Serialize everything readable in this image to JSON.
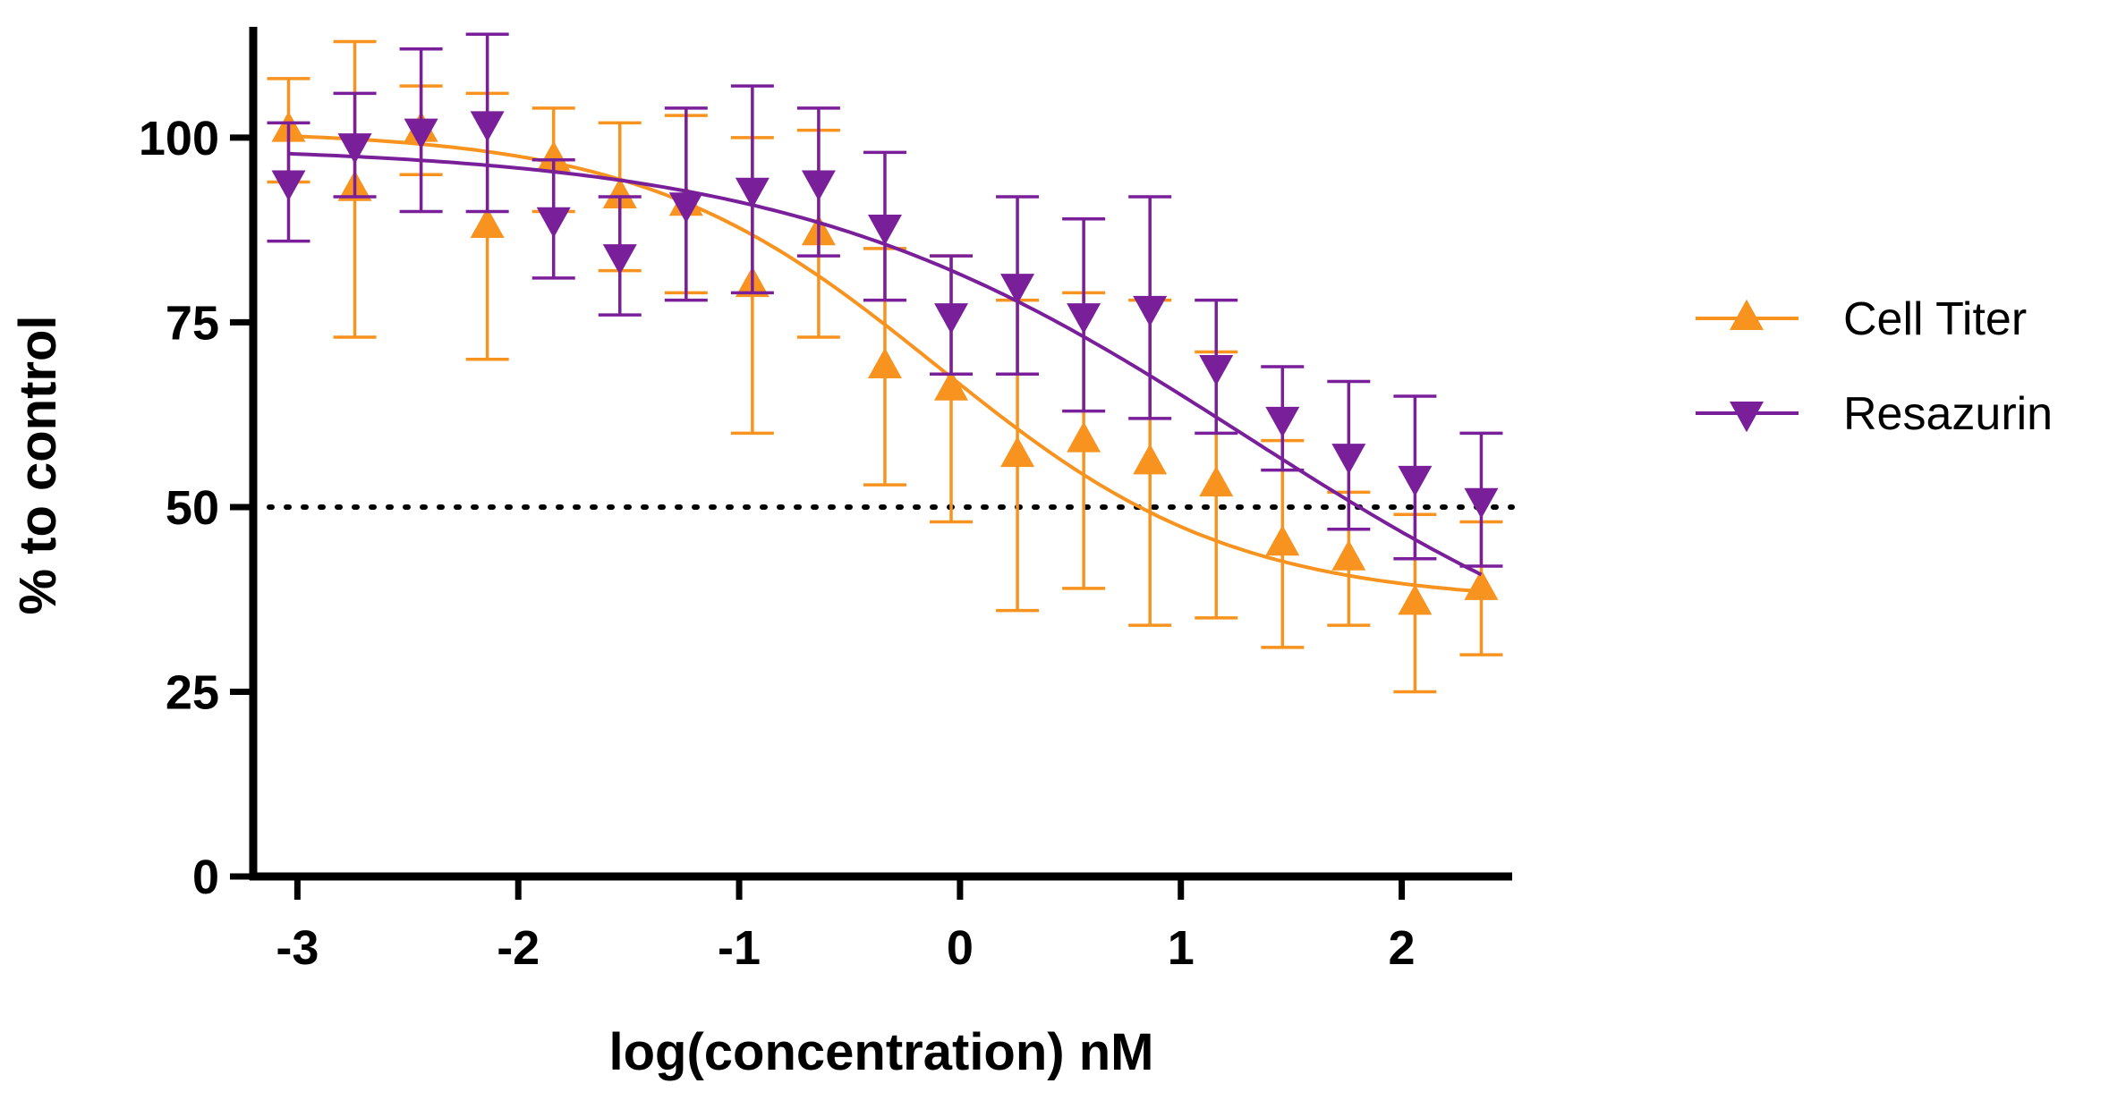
{
  "chart_data": {
    "type": "line",
    "title": "",
    "xlabel": "log(concentration) nM",
    "ylabel": "% to control",
    "xlim": [
      -3.2,
      2.5
    ],
    "ylim": [
      0,
      115
    ],
    "xticks": [
      -3,
      -2,
      -1,
      0,
      1,
      2
    ],
    "xtick_labels": [
      "-3",
      "-2",
      "-1",
      "0",
      "1",
      "2"
    ],
    "yticks": [
      0,
      25,
      50,
      75,
      100
    ],
    "ytick_labels": [
      "0",
      "25",
      "50",
      "75",
      "100"
    ],
    "reference_line": {
      "y": 50,
      "style": "dotted",
      "color": "#000000"
    },
    "legend": {
      "placement": "right",
      "entries": [
        "Cell Titer",
        "Resazurin"
      ]
    },
    "series": [
      {
        "name": "Cell Titer",
        "color": "#F7931E",
        "marker": "triangle-up",
        "x": [
          -3.04,
          -2.74,
          -2.44,
          -2.14,
          -1.84,
          -1.54,
          -1.24,
          -0.94,
          -0.64,
          -0.34,
          -0.04,
          0.26,
          0.56,
          0.86,
          1.16,
          1.46,
          1.76,
          2.06,
          2.36
        ],
        "y": [
          101,
          93,
          101,
          88,
          97,
          92,
          91,
          80,
          87,
          69,
          66,
          57,
          59,
          56,
          53,
          45,
          43,
          37,
          39
        ],
        "err": [
          7,
          20,
          6,
          18,
          7,
          10,
          12,
          20,
          14,
          16,
          18,
          21,
          20,
          22,
          18,
          14,
          9,
          12,
          9
        ],
        "fit": {
          "bottom": 37,
          "top": 101,
          "logIC50": -0.1,
          "hill": -0.65
        }
      },
      {
        "name": "Resazurin",
        "color": "#7A1F9A",
        "marker": "triangle-down",
        "x": [
          -3.04,
          -2.74,
          -2.44,
          -2.14,
          -1.84,
          -1.54,
          -1.24,
          -0.94,
          -0.64,
          -0.34,
          -0.04,
          0.26,
          0.56,
          0.86,
          1.16,
          1.46,
          1.76,
          2.06,
          2.36
        ],
        "y": [
          94,
          99,
          101,
          102,
          89,
          84,
          91,
          93,
          94,
          88,
          76,
          80,
          76,
          77,
          69,
          62,
          57,
          54,
          51
        ],
        "err": [
          8,
          7,
          11,
          12,
          8,
          8,
          13,
          14,
          10,
          10,
          8,
          12,
          13,
          15,
          9,
          7,
          10,
          11,
          9
        ],
        "fit": {
          "bottom": 20,
          "top": 99,
          "logIC50": 1.3,
          "hill": -0.42
        }
      }
    ]
  }
}
